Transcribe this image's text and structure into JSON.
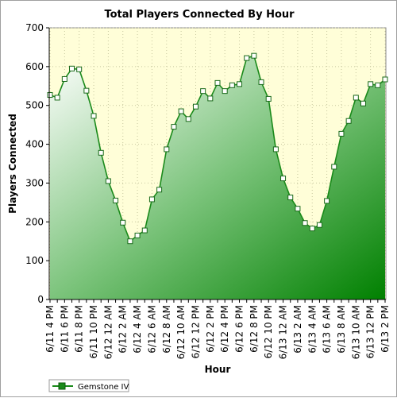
{
  "chart_data": {
    "type": "area",
    "title": "Total Players Connected By Hour",
    "xlabel": "Hour",
    "ylabel": "Players Connected",
    "ylim": [
      0,
      700
    ],
    "y_ticks": [
      0,
      100,
      200,
      300,
      400,
      500,
      600,
      700
    ],
    "grid": true,
    "legend_position": "bottom-left",
    "x_tick_labels": [
      "6/11 4 PM",
      "6/11 6 PM",
      "6/11 8 PM",
      "6/11 10 PM",
      "6/12 12 AM",
      "6/12 2 AM",
      "6/12 4 AM",
      "6/12 6 AM",
      "6/12 8 AM",
      "6/12 10 AM",
      "6/12 12 PM",
      "6/12 2 PM",
      "6/12 4 PM",
      "6/12 6 PM",
      "6/12 8 PM",
      "6/12 10 PM",
      "6/13 12 AM",
      "6/13 2 AM",
      "6/13 4 AM",
      "6/13 6 AM",
      "6/13 8 AM",
      "6/13 10 AM",
      "6/13 12 PM",
      "6/13 2 PM"
    ],
    "series": [
      {
        "name": "Gemstone IV",
        "color": "#1a8a1a",
        "values": [
          527,
          520,
          568,
          595,
          593,
          538,
          473,
          378,
          305,
          255,
          198,
          150,
          165,
          178,
          258,
          283,
          387,
          445,
          485,
          465,
          497,
          537,
          518,
          558,
          537,
          552,
          555,
          622,
          628,
          560,
          517,
          387,
          312,
          263,
          234,
          197,
          183,
          192,
          254,
          342,
          427,
          460,
          520,
          505,
          555,
          552,
          567
        ]
      }
    ]
  }
}
